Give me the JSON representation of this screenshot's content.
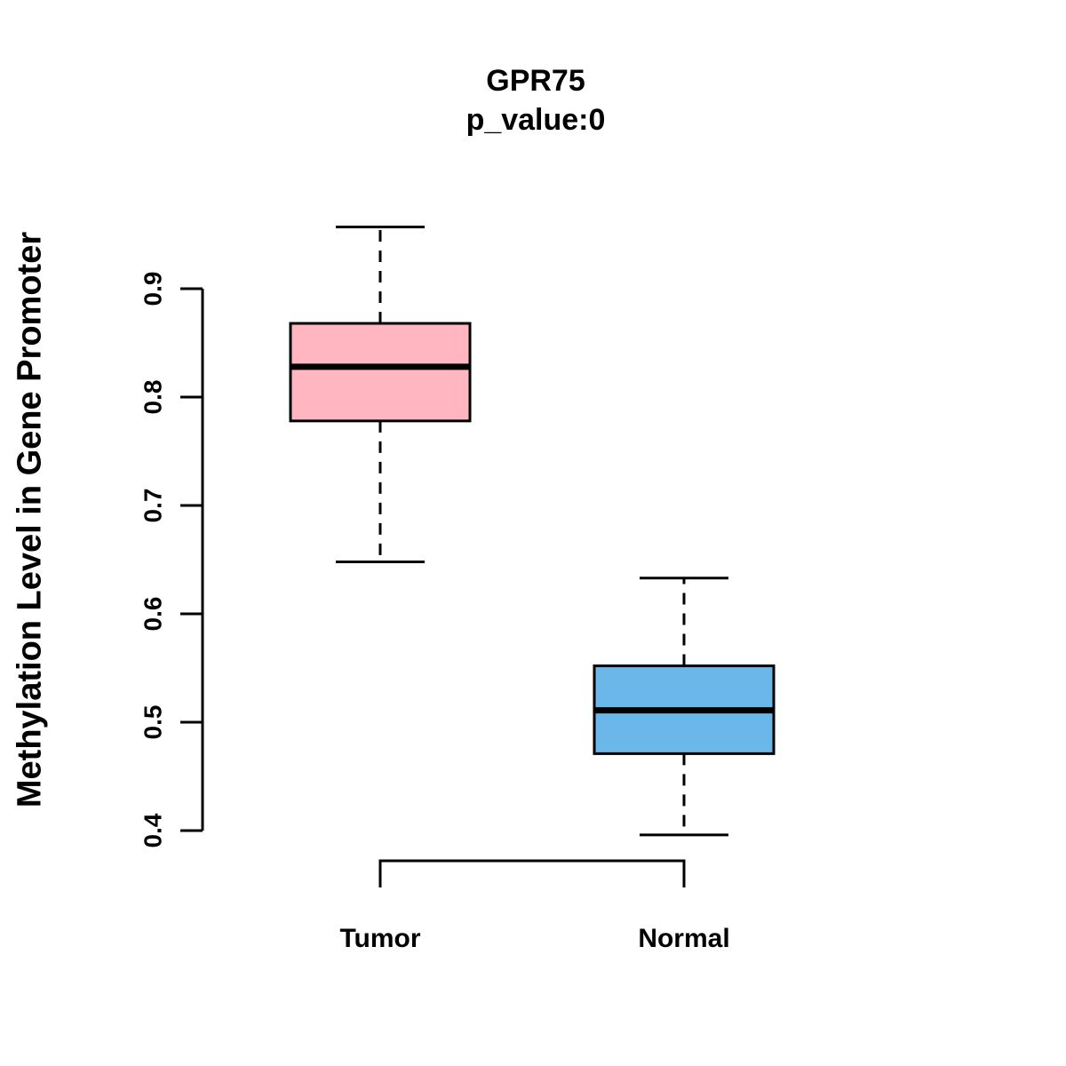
{
  "chart_data": {
    "type": "boxplot",
    "title": "GPR75",
    "subtitle": "p_value:0",
    "ylabel": "Methylation Level in Gene Promoter",
    "xlabel": "",
    "categories": [
      "Tumor",
      "Normal"
    ],
    "y_ticks": [
      0.4,
      0.5,
      0.6,
      0.7,
      0.8,
      0.9
    ],
    "ylim": [
      0.4,
      0.9
    ],
    "grid": false,
    "legend": "none",
    "series": [
      {
        "name": "Tumor",
        "color": "#FFB6C1",
        "border_color": "#000000",
        "min": 0.648,
        "q1": 0.778,
        "median": 0.828,
        "q3": 0.868,
        "max": 0.957
      },
      {
        "name": "Normal",
        "color": "#6CB7EA",
        "border_color": "#000000",
        "min": 0.396,
        "q1": 0.471,
        "median": 0.511,
        "q3": 0.552,
        "max": 0.633
      }
    ]
  }
}
